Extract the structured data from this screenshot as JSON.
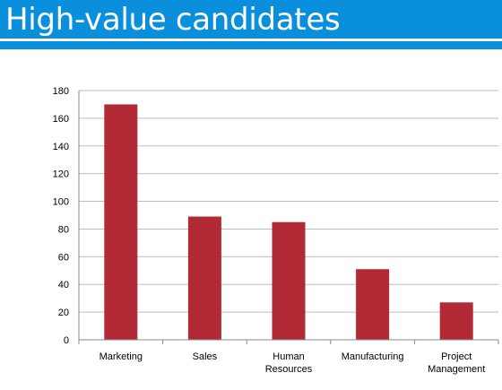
{
  "header": {
    "title": "High-value candidates"
  },
  "colors": {
    "accent": "#0a8fdc",
    "bar": "#b22a35",
    "grid": "#bdbdbd"
  },
  "chart_data": {
    "type": "bar",
    "title": "",
    "xlabel": "",
    "ylabel": "",
    "categories": [
      "Marketing",
      "Sales",
      "Human Resources",
      "Manufacturing",
      "Project Management"
    ],
    "category_lines": [
      [
        "Marketing"
      ],
      [
        "Sales"
      ],
      [
        "Human",
        "Resources"
      ],
      [
        "Manufacturing"
      ],
      [
        "Project",
        "Management"
      ]
    ],
    "values": [
      170,
      89,
      85,
      51,
      27
    ],
    "ylim": [
      0,
      180
    ],
    "yticks": [
      0,
      20,
      40,
      60,
      80,
      100,
      120,
      140,
      160,
      180
    ],
    "grid": true,
    "legend": "none"
  }
}
